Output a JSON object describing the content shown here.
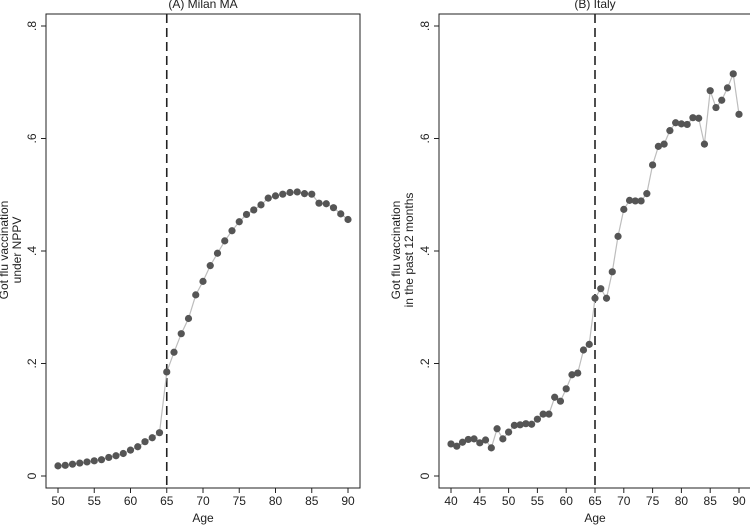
{
  "colors": {
    "line": "#bdbdbd",
    "marker": "#555555",
    "cutoff": "#222222",
    "axis": "#222222",
    "text": "#222222"
  },
  "chart_data": [
    {
      "type": "scatter",
      "title": "(A) Milan MA",
      "xlabel": "Age",
      "ylabel_lines": [
        "Got flu vaccination",
        "under NPPV"
      ],
      "xlim": [
        50,
        90
      ],
      "ylim": [
        0,
        0.8
      ],
      "xticks": [
        50,
        55,
        60,
        65,
        70,
        75,
        80,
        85,
        90
      ],
      "yticks": [
        0,
        0.2,
        0.4,
        0.6,
        0.8
      ],
      "ytick_labels": [
        "0",
        ".2",
        ".4",
        ".6",
        ".8"
      ],
      "cutoff_x": 65,
      "grid": false,
      "series": [
        {
          "x": [
            50,
            51,
            52,
            53,
            54,
            55,
            56,
            57,
            58,
            59,
            60,
            61,
            62,
            63,
            64,
            65,
            66,
            67,
            68,
            69,
            70,
            71,
            72,
            73,
            74,
            75,
            76,
            77,
            78,
            79,
            80,
            81,
            82,
            83,
            84,
            85,
            86,
            87,
            88,
            89,
            90
          ],
          "y": [
            0.018,
            0.019,
            0.021,
            0.023,
            0.025,
            0.027,
            0.029,
            0.033,
            0.036,
            0.04,
            0.046,
            0.052,
            0.061,
            0.068,
            0.077,
            0.185,
            0.22,
            0.253,
            0.28,
            0.322,
            0.346,
            0.374,
            0.396,
            0.418,
            0.436,
            0.452,
            0.465,
            0.473,
            0.482,
            0.494,
            0.498,
            0.501,
            0.504,
            0.505,
            0.502,
            0.501,
            0.485,
            0.484,
            0.477,
            0.466,
            0.456
          ]
        }
      ]
    },
    {
      "type": "scatter",
      "title": "(B) Italy",
      "xlabel": "Age",
      "ylabel_lines": [
        "Got flu vaccination",
        "in the past 12 months"
      ],
      "xlim": [
        40,
        90
      ],
      "ylim": [
        0,
        0.8
      ],
      "xticks": [
        40,
        45,
        50,
        55,
        60,
        65,
        70,
        75,
        80,
        85,
        90
      ],
      "yticks": [
        0,
        0.2,
        0.4,
        0.6,
        0.8
      ],
      "ytick_labels": [
        "0",
        ".2",
        ".4",
        ".6",
        ".8"
      ],
      "cutoff_x": 65,
      "grid": false,
      "series": [
        {
          "x": [
            40,
            41,
            42,
            43,
            44,
            45,
            46,
            47,
            48,
            49,
            50,
            51,
            52,
            53,
            54,
            55,
            56,
            57,
            58,
            59,
            60,
            61,
            62,
            63,
            64,
            65,
            66,
            67,
            68,
            69,
            70,
            71,
            72,
            73,
            74,
            75,
            76,
            77,
            78,
            79,
            80,
            81,
            82,
            83,
            84,
            85,
            86,
            87,
            88,
            89,
            90
          ],
          "y": [
            0.057,
            0.053,
            0.06,
            0.065,
            0.066,
            0.059,
            0.064,
            0.05,
            0.084,
            0.066,
            0.078,
            0.09,
            0.091,
            0.093,
            0.092,
            0.101,
            0.11,
            0.11,
            0.14,
            0.133,
            0.155,
            0.18,
            0.183,
            0.224,
            0.234,
            0.316,
            0.333,
            0.316,
            0.363,
            0.426,
            0.474,
            0.49,
            0.489,
            0.489,
            0.502,
            0.553,
            0.586,
            0.59,
            0.614,
            0.628,
            0.626,
            0.625,
            0.637,
            0.636,
            0.59,
            0.685,
            0.655,
            0.668,
            0.69,
            0.715,
            0.643
          ]
        }
      ]
    }
  ]
}
